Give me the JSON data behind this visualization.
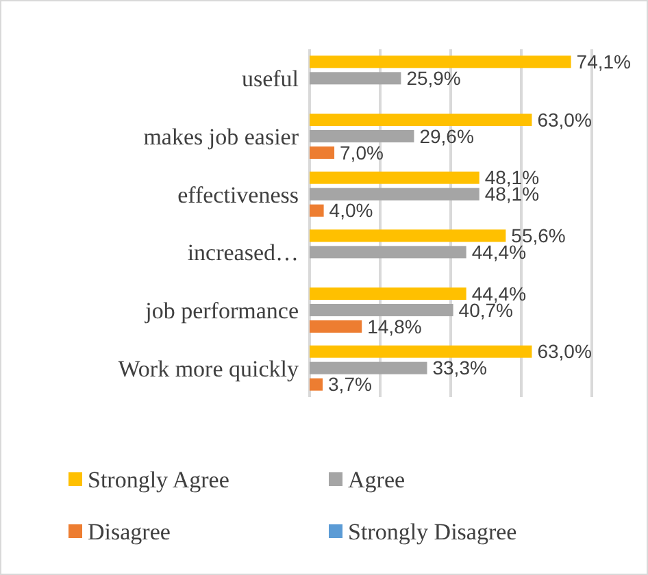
{
  "chart_data": {
    "type": "bar",
    "orientation": "horizontal",
    "categories": [
      "useful",
      "makes job easier",
      "effectiveness",
      "increased…",
      "job performance",
      "Work more quickly"
    ],
    "series": [
      {
        "name": "Strongly Agree",
        "color": "#ffc000",
        "values": [
          74.1,
          63.0,
          48.1,
          55.6,
          44.4,
          63.0
        ],
        "value_labels": [
          "74,1%",
          "63,0%",
          "48,1%",
          "55,6%",
          "44,4%",
          "63,0%"
        ]
      },
      {
        "name": "Agree",
        "color": "#a5a5a5",
        "values": [
          25.9,
          29.6,
          48.1,
          44.4,
          40.7,
          33.3
        ],
        "value_labels": [
          "25,9%",
          "29,6%",
          "48,1%",
          "44,4%",
          "40,7%",
          "33,3%"
        ]
      },
      {
        "name": "Disagree",
        "color": "#ed7d31",
        "values": [
          null,
          7.0,
          4.0,
          null,
          14.8,
          3.7
        ],
        "value_labels": [
          null,
          "7,0%",
          "4,0%",
          null,
          "14,8%",
          "3,7%"
        ]
      },
      {
        "name": "Strongly Disagree",
        "color": "#5b9bd5",
        "values": [
          null,
          null,
          null,
          null,
          null,
          null
        ]
      }
    ],
    "xlim": [
      0,
      80
    ],
    "xticks": [
      {
        "value": 0,
        "label": null
      },
      {
        "value": 20,
        "label": null
      },
      {
        "value": 40,
        "label": null
      },
      {
        "value": 60,
        "label": null
      },
      {
        "value": 80,
        "label": null
      }
    ],
    "tick_labels": "y",
    "grid": "x",
    "legend": "bottom"
  }
}
